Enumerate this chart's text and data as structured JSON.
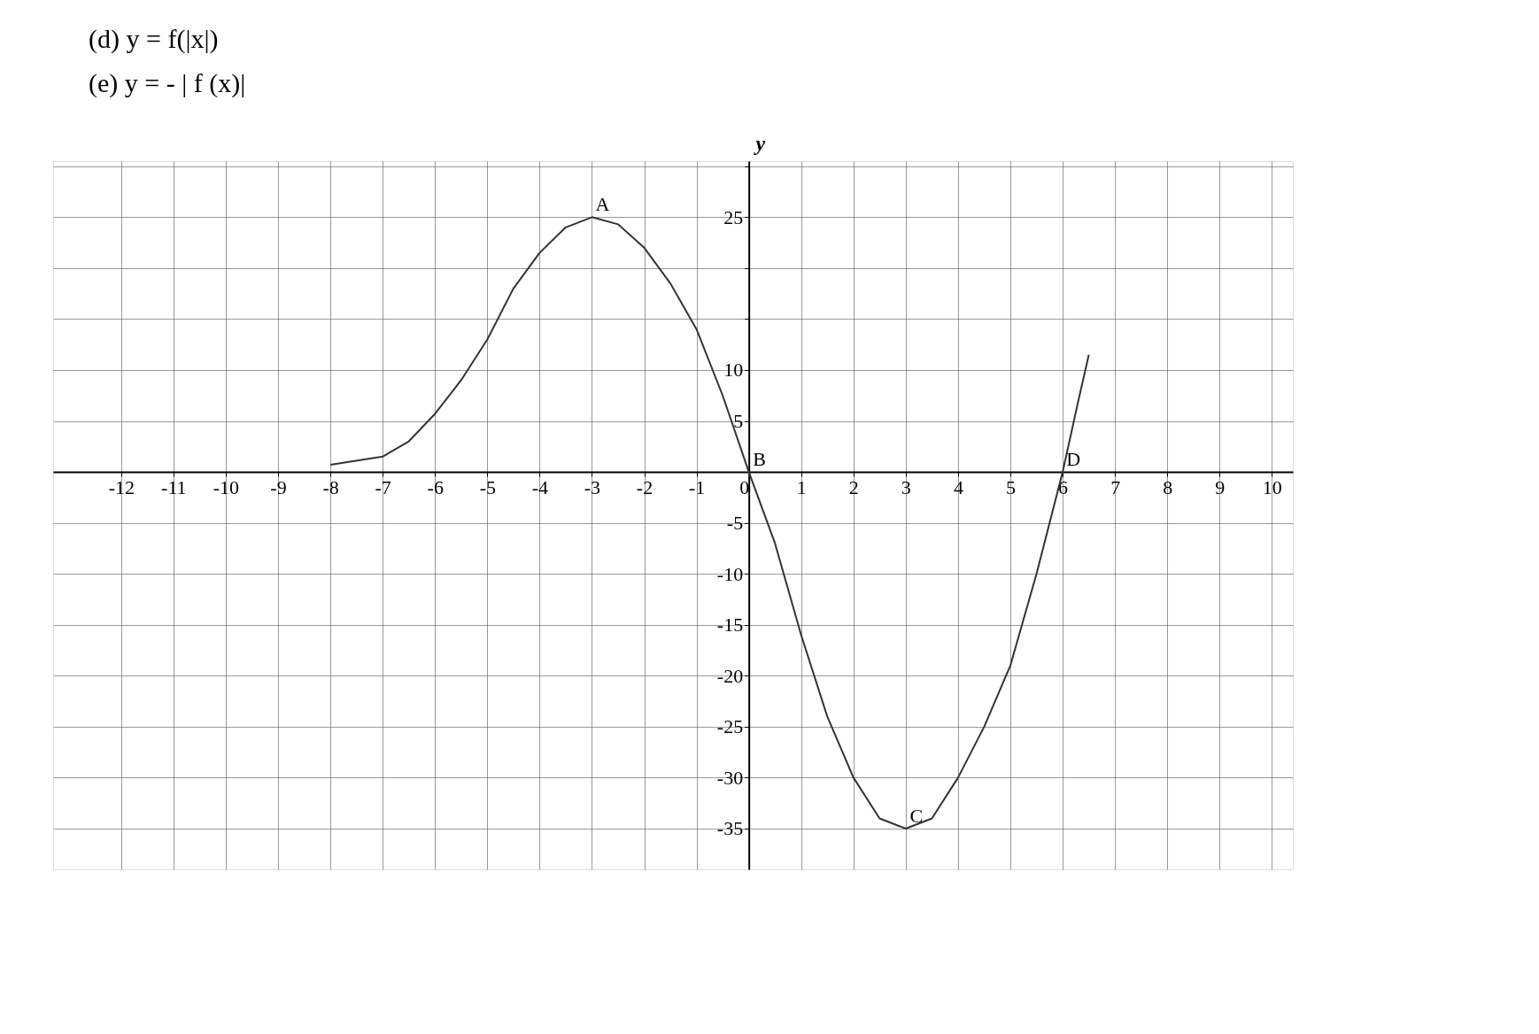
{
  "chart_data": {
    "type": "line",
    "title": "(d)    y = f(|x|)",
    "subtitle": "(e)   y = - | f (x)|",
    "ylabel": "y",
    "series": [
      {
        "color": "#333333",
        "x": [
          -8,
          -7,
          -6.5,
          -6,
          -5.5,
          -5,
          -4.5,
          -4,
          -3.5,
          -3,
          -2.5,
          -2,
          -1.5,
          -1,
          -0.5,
          0,
          0.5,
          1,
          1.5,
          2,
          2.5,
          3,
          3.5,
          4,
          4.5,
          5,
          5.5,
          6,
          6.3,
          6.5
        ],
        "values": [
          0.7,
          1.5,
          3,
          5.7,
          9,
          13,
          18,
          21.5,
          24,
          25,
          24.3,
          22,
          18.5,
          14,
          7.5,
          0,
          -7,
          -16,
          -24,
          -30,
          -34,
          -35,
          -34,
          -30,
          -25,
          -19,
          -10,
          0,
          7,
          11.5
        ]
      }
    ],
    "xlim": [
      -13.3,
      10.4
    ],
    "xticks": [
      -12,
      -11,
      -10,
      -9,
      -8,
      -7,
      -6,
      -5,
      -4,
      -3,
      -2,
      -1,
      0,
      1,
      2,
      3,
      4,
      5,
      6,
      7,
      8,
      9,
      10
    ],
    "ylim": [
      -39,
      30.5
    ],
    "yticks": [
      -35,
      -30,
      -25,
      -20,
      -15,
      -10,
      -5,
      {
        "value": 0,
        "label": null
      },
      5,
      10,
      {
        "value": 15,
        "label": null
      },
      {
        "value": 20,
        "label": null
      },
      25,
      {
        "value": 30,
        "label": null
      }
    ],
    "grid": true,
    "line_style": "solid",
    "marker": "none",
    "annotations": [
      {
        "text": "A",
        "x": -3,
        "y": 25
      },
      {
        "text": "B",
        "x": 0,
        "y": 0
      },
      {
        "text": "C",
        "x": 3,
        "y": -35
      },
      {
        "text": "D",
        "x": 6,
        "y": 0
      }
    ]
  }
}
